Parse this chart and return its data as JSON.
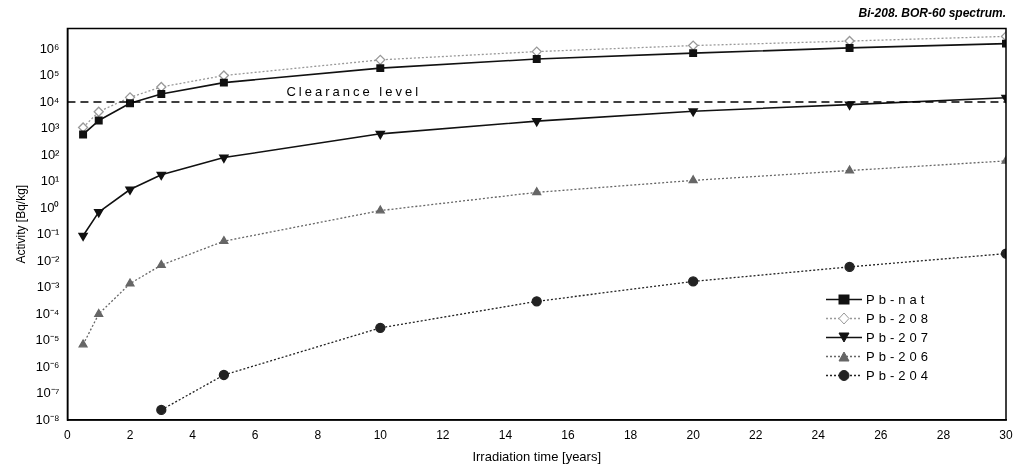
{
  "chart_data": {
    "type": "line",
    "title": "Bi-208. BOR-60 spectrum.",
    "xlabel": "Irradiation time [years]",
    "ylabel": "Activity [Bq/kg]",
    "log": "y",
    "grid": false,
    "legend": "bottom right",
    "xlim": [
      0,
      30
    ],
    "xticks": [
      0,
      2,
      4,
      6,
      8,
      10,
      12,
      14,
      16,
      18,
      20,
      22,
      24,
      26,
      28,
      30
    ],
    "ylim": [
      1e-08,
      6000000
    ],
    "yticks": [
      {
        "value": 1e-08,
        "label": "10⁻⁸"
      },
      {
        "value": 1e-07,
        "label": "10⁻⁷"
      },
      {
        "value": 1e-06,
        "label": "10⁻⁶"
      },
      {
        "value": 1e-05,
        "label": "10⁻⁵"
      },
      {
        "value": 0.0001,
        "label": "10⁻⁴"
      },
      {
        "value": 0.001,
        "label": "10⁻³"
      },
      {
        "value": 0.01,
        "label": "10⁻²"
      },
      {
        "value": 0.1,
        "label": "10⁻¹"
      },
      {
        "value": 1,
        "label": "10⁰"
      },
      {
        "value": 10,
        "label": "10¹"
      },
      {
        "value": 100,
        "label": "10²"
      },
      {
        "value": 1000,
        "label": "10³"
      },
      {
        "value": 10000,
        "label": "10⁴"
      },
      {
        "value": 100000,
        "label": "10⁵"
      },
      {
        "value": 1000000,
        "label": "10⁶"
      }
    ],
    "ref_lines": [
      {
        "axis": "y",
        "value": 10000,
        "label": "Clearance level",
        "color": "#000000",
        "line_style": "dashed"
      }
    ],
    "x": [
      0.5,
      1,
      2,
      3,
      5,
      10,
      15,
      20,
      25,
      30
    ],
    "series": [
      {
        "name": "Pb-nat",
        "color": "#111111",
        "marker": "square",
        "line_style": "solid",
        "values": [
          600,
          2000,
          9000,
          20000,
          54000,
          190000,
          420000,
          700000,
          1100000,
          1600000
        ]
      },
      {
        "name": "Pb-208",
        "color": "#999999",
        "marker": "diamond",
        "line_style": "dotted",
        "values": [
          1100,
          4300,
          15000,
          37000,
          100000,
          390000,
          800000,
          1350000,
          2000000,
          3000000
        ]
      },
      {
        "name": "Pb-207",
        "color": "#111111",
        "marker": "triangle-down",
        "line_style": "solid",
        "values": [
          0.09,
          0.7,
          5,
          18,
          80,
          630,
          1900,
          4500,
          8000,
          14500
        ]
      },
      {
        "name": "Pb-206",
        "color": "#666666",
        "marker": "triangle",
        "line_style": "dotted",
        "values": [
          7e-06,
          0.0001,
          0.0014,
          0.007,
          0.056,
          0.8,
          3.9,
          11,
          26,
          60
        ]
      },
      {
        "name": "Pb-204",
        "color": "#222222",
        "marker": "circle",
        "line_style": "dotted",
        "values": [
          null,
          null,
          null,
          2.4e-08,
          5e-07,
          3e-05,
          0.0003,
          0.0017,
          0.006,
          0.019
        ]
      }
    ]
  }
}
